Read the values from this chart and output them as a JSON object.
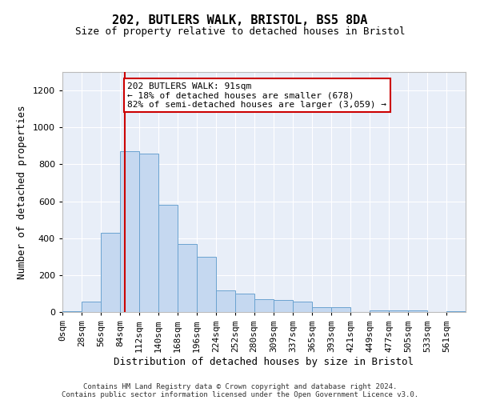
{
  "title1": "202, BUTLERS WALK, BRISTOL, BS5 8DA",
  "title2": "Size of property relative to detached houses in Bristol",
  "xlabel": "Distribution of detached houses by size in Bristol",
  "ylabel": "Number of detached properties",
  "bin_labels": [
    "0sqm",
    "28sqm",
    "56sqm",
    "84sqm",
    "112sqm",
    "140sqm",
    "168sqm",
    "196sqm",
    "224sqm",
    "252sqm",
    "280sqm",
    "309sqm",
    "337sqm",
    "365sqm",
    "393sqm",
    "421sqm",
    "449sqm",
    "477sqm",
    "505sqm",
    "533sqm",
    "561sqm"
  ],
  "bar_values": [
    5,
    55,
    430,
    870,
    860,
    580,
    370,
    300,
    115,
    100,
    70,
    65,
    55,
    25,
    25,
    0,
    10,
    10,
    10,
    0,
    5
  ],
  "bin_edges": [
    0,
    28,
    56,
    84,
    112,
    140,
    168,
    196,
    224,
    252,
    280,
    309,
    337,
    365,
    393,
    421,
    449,
    477,
    505,
    533,
    561,
    589
  ],
  "bar_color": "#c5d8f0",
  "bar_edge_color": "#6ba3d0",
  "property_size": 91,
  "annotation_text": "202 BUTLERS WALK: 91sqm\n← 18% of detached houses are smaller (678)\n82% of semi-detached houses are larger (3,059) →",
  "annotation_box_color": "white",
  "annotation_box_edge_color": "#cc0000",
  "vline_color": "#cc0000",
  "ylim": [
    0,
    1300
  ],
  "yticks": [
    0,
    200,
    400,
    600,
    800,
    1000,
    1200
  ],
  "background_color": "#e8eef8",
  "footer1": "Contains HM Land Registry data © Crown copyright and database right 2024.",
  "footer2": "Contains public sector information licensed under the Open Government Licence v3.0.",
  "grid_color": "white",
  "title_fontsize": 11,
  "subtitle_fontsize": 9,
  "annotation_fontsize": 8,
  "ylabel_fontsize": 9,
  "xlabel_fontsize": 9,
  "tick_fontsize": 8,
  "footer_fontsize": 6.5
}
